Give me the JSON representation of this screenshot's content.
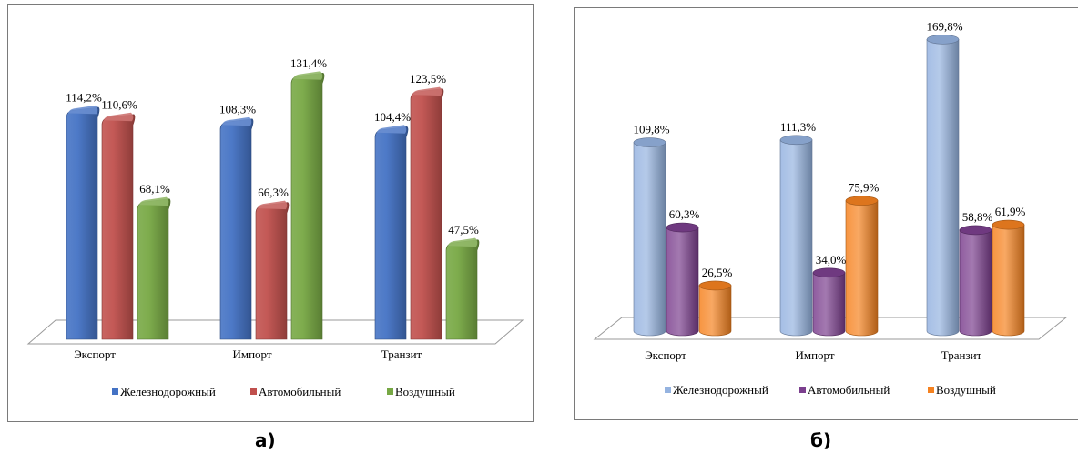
{
  "chart_data": [
    {
      "type": "bar",
      "style": "3d-rounded-column",
      "categories": [
        "Экспорт",
        "Импорт",
        "Транзит"
      ],
      "series": [
        {
          "name": "Железнодорожный",
          "values": [
            114.2,
            108.3,
            104.4
          ],
          "labels": [
            "114,2%",
            "108,3%",
            "104,4%"
          ],
          "color": "#4472C4"
        },
        {
          "name": "Автомобильный",
          "values": [
            110.6,
            66.3,
            123.5
          ],
          "labels": [
            "110,6%",
            "66,3%",
            "123,5%"
          ],
          "color": "#C0504D"
        },
        {
          "name": "Воздушный",
          "values": [
            68.1,
            131.4,
            47.5
          ],
          "labels": [
            "68,1%",
            "131,4%",
            "47,5%"
          ],
          "color": "#77A844"
        }
      ],
      "ylim": [
        0,
        140
      ],
      "grid": false,
      "legend": "bottom",
      "caption": "а)"
    },
    {
      "type": "bar",
      "style": "3d-cylinder",
      "categories": [
        "Экспорт",
        "Импорт",
        "Транзит"
      ],
      "series": [
        {
          "name": "Железнодорожный",
          "values": [
            109.8,
            111.3,
            169.8
          ],
          "labels": [
            "109,8%",
            "111,3%",
            "169,8%"
          ],
          "color": "#95B3E0"
        },
        {
          "name": "Автомобильный",
          "values": [
            60.3,
            34.0,
            58.8
          ],
          "labels": [
            "60,3%",
            "34,0%",
            "58,8%"
          ],
          "color": "#7B3F8E"
        },
        {
          "name": "Воздушный",
          "values": [
            26.5,
            75.9,
            61.9
          ],
          "labels": [
            "26,5%",
            "75,9%",
            "61,9%"
          ],
          "color": "#F58220"
        }
      ],
      "ylim": [
        0,
        180
      ],
      "grid": false,
      "legend": "bottom",
      "caption": "б)"
    }
  ]
}
